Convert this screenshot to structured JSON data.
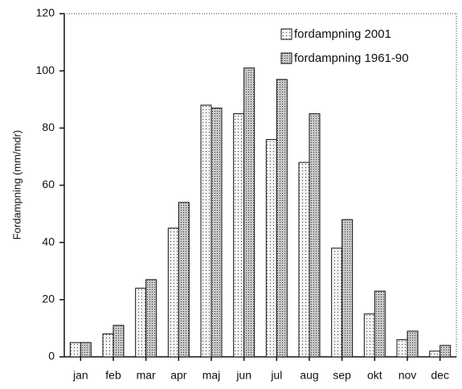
{
  "chart_data": {
    "type": "bar",
    "ylabel": "Fordampning (mm/mdr)",
    "categories": [
      "jan",
      "feb",
      "mar",
      "apr",
      "maj",
      "jun",
      "jul",
      "aug",
      "sep",
      "okt",
      "nov",
      "dec"
    ],
    "series": [
      {
        "name": "fordampning 2001",
        "color": "#f4f4f4",
        "values": [
          5,
          8,
          24,
          45,
          88,
          85,
          76,
          68,
          38,
          15,
          6,
          2
        ]
      },
      {
        "name": "fordampning 1961-90",
        "color": "#c8c8c8",
        "values": [
          5,
          11,
          27,
          54,
          87,
          101,
          97,
          85,
          48,
          23,
          9,
          4
        ]
      }
    ],
    "ylim": [
      0,
      120
    ],
    "yticks": [
      0,
      20,
      40,
      60,
      80,
      100,
      120
    ],
    "legend": "top-right"
  }
}
